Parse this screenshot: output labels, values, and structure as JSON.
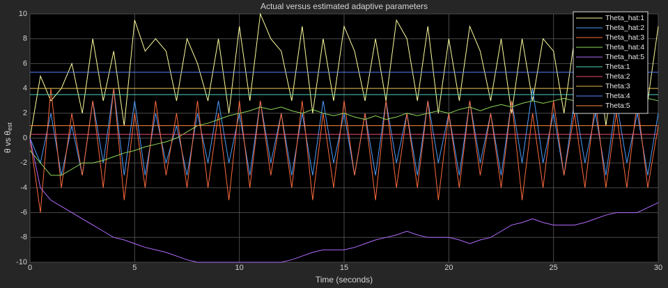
{
  "chart_data": {
    "type": "line",
    "title": "Actual versus estimated adaptive parameters",
    "xlabel": "Time (seconds)",
    "ylabel": {
      "main": "θ vs θ",
      "sub": "est"
    },
    "x": [
      0,
      0.5,
      1,
      1.5,
      2,
      2.5,
      3,
      3.5,
      4,
      4.5,
      5,
      5.5,
      6,
      6.5,
      7,
      7.5,
      8,
      8.5,
      9,
      9.5,
      10,
      10.5,
      11,
      11.5,
      12,
      12.5,
      13,
      13.5,
      14,
      14.5,
      15,
      15.5,
      16,
      16.5,
      17,
      17.5,
      18,
      18.5,
      19,
      19.5,
      20,
      20.5,
      21,
      21.5,
      22,
      22.5,
      23,
      23.5,
      24,
      24.5,
      25,
      25.5,
      26,
      26.5,
      27,
      27.5,
      28,
      28.5,
      29,
      29.5,
      30
    ],
    "xlim": [
      0,
      30
    ],
    "xticks": [
      0,
      5,
      10,
      15,
      20,
      25,
      30
    ],
    "ylim": [
      -10,
      10
    ],
    "yticks": [
      -10,
      -8,
      -6,
      -4,
      -2,
      0,
      2,
      4,
      6,
      8,
      10
    ],
    "grid": true,
    "legend": "upper right",
    "series": [
      {
        "name": "Theta_hat:1",
        "color": "#ffff9e",
        "values": [
          0,
          5,
          3,
          4,
          6,
          2,
          8,
          3,
          7,
          1,
          9.5,
          7,
          8,
          7,
          3,
          8,
          6,
          3,
          8,
          2,
          9,
          3,
          10,
          8,
          7,
          3,
          9,
          2,
          8,
          3,
          9,
          7,
          3,
          8,
          3,
          9.5,
          8,
          3,
          9,
          2,
          8,
          3,
          9,
          7,
          3,
          8,
          2,
          8,
          3,
          8,
          7,
          2,
          8,
          3,
          8,
          1,
          7,
          2,
          7,
          3,
          9
        ]
      },
      {
        "name": "Theta_hat:2",
        "color": "#4d9fff",
        "values": [
          0,
          -2,
          2,
          -3,
          1,
          -3,
          3,
          -2,
          4,
          -3,
          3,
          -3,
          2,
          -2,
          1,
          -3,
          2,
          -2,
          3,
          -2,
          2,
          -3,
          3,
          -2,
          2,
          -3,
          2,
          -3,
          3,
          -2,
          2,
          -3,
          2,
          -3,
          3,
          -2,
          2,
          -3,
          3,
          -2,
          2,
          -3,
          3,
          -2,
          2,
          -3,
          3,
          -2,
          4,
          -2,
          2,
          -3,
          3,
          -2,
          2,
          -3,
          3,
          -2,
          2,
          -3,
          2
        ]
      },
      {
        "name": "Theta_hat:3",
        "color": "#ff6b3d",
        "values": [
          0,
          -6,
          4,
          -4,
          2,
          -3,
          3,
          -4,
          4,
          -5,
          2,
          -4,
          3,
          -3,
          2,
          -4,
          3,
          -4,
          2,
          -5,
          3,
          -4,
          3,
          -3,
          2,
          -4,
          3,
          -5,
          2,
          -4,
          3,
          -3,
          2,
          -5,
          3,
          -4,
          2,
          -4,
          3,
          -5,
          2,
          -4,
          3,
          -3,
          2,
          -4,
          3,
          -5,
          2,
          -4,
          3,
          -3,
          2,
          -4,
          3,
          -4,
          2,
          -4,
          3,
          -4,
          1
        ]
      },
      {
        "name": "Theta_hat:4",
        "color": "#8fd85a",
        "values": [
          -1,
          -2,
          -3,
          -3,
          -2.5,
          -2,
          -2,
          -1.8,
          -1.5,
          -1.2,
          -1,
          -0.7,
          -0.5,
          -0.3,
          0,
          0.5,
          1,
          1.2,
          1.5,
          1.8,
          2,
          2.2,
          2.5,
          2.3,
          2.5,
          2.2,
          2,
          2.3,
          2,
          1.8,
          2,
          1.7,
          1.5,
          1.8,
          1.5,
          1.7,
          2,
          1.8,
          2,
          2.2,
          2,
          2.3,
          2.5,
          2.2,
          2.5,
          2.7,
          2.5,
          2.8,
          3,
          2.8,
          3,
          3.2,
          3,
          3.3,
          3.5,
          3.2,
          3.5,
          3.3,
          3,
          3.2,
          3
        ]
      },
      {
        "name": "Theta_hat:5",
        "color": "#b36bff",
        "values": [
          0,
          -4,
          -5,
          -5.5,
          -6,
          -6.5,
          -7,
          -7.5,
          -8,
          -8.2,
          -8.5,
          -8.8,
          -9,
          -9.2,
          -9.5,
          -9.8,
          -10,
          -10,
          -10,
          -10,
          -10,
          -10,
          -10,
          -10,
          -10,
          -9.8,
          -9.5,
          -9.2,
          -9,
          -9,
          -9,
          -8.8,
          -8.5,
          -8.2,
          -8,
          -7.8,
          -7.5,
          -7.8,
          -8,
          -8,
          -8,
          -8.2,
          -8.5,
          -8.2,
          -8,
          -7.5,
          -7,
          -6.8,
          -6.5,
          -6.8,
          -7,
          -7,
          -7,
          -6.8,
          -6.5,
          -6.2,
          -6,
          -6,
          -6,
          -5.6,
          -5.2
        ]
      },
      {
        "name": "Theta:1",
        "color": "#4fd6c0",
        "values": [
          3.5,
          3.5,
          3.5,
          3.5,
          3.5,
          3.5,
          3.5,
          3.5,
          3.5,
          3.5,
          3.5,
          3.5,
          3.5,
          3.5,
          3.5,
          3.5,
          3.5,
          3.5,
          3.5,
          3.5,
          3.5,
          3.5,
          3.5,
          3.5,
          3.5,
          3.5,
          3.5,
          3.5,
          3.5,
          3.5,
          3.5,
          3.5,
          3.5,
          3.5,
          3.5,
          3.5,
          3.5,
          3.5,
          3.5,
          3.5,
          3.5,
          3.5,
          3.5,
          3.5,
          3.5,
          3.5,
          3.5,
          3.5,
          3.5,
          3.5,
          3.5,
          3.5,
          3.5,
          3.5,
          3.5,
          3.5,
          3.5,
          3.5,
          3.5,
          3.5,
          3.5
        ]
      },
      {
        "name": "Theta:2",
        "color": "#f04a6a",
        "values": [
          0.3,
          0.3,
          0.3,
          0.3,
          0.3,
          0.3,
          0.3,
          0.3,
          0.3,
          0.3,
          0.3,
          0.3,
          0.3,
          0.3,
          0.3,
          0.3,
          0.3,
          0.3,
          0.3,
          0.3,
          0.3,
          0.3,
          0.3,
          0.3,
          0.3,
          0.3,
          0.3,
          0.3,
          0.3,
          0.3,
          0.3,
          0.3,
          0.3,
          0.3,
          0.3,
          0.3,
          0.3,
          0.3,
          0.3,
          0.3,
          0.3,
          0.3,
          0.3,
          0.3,
          0.3,
          0.3,
          0.3,
          0.3,
          0.3,
          0.3,
          0.3,
          0.3,
          0.3,
          0.3,
          0.3,
          0.3,
          0.3,
          0.3,
          0.3,
          0.3,
          0.3
        ]
      },
      {
        "name": "Theta:3",
        "color": "#e0bd4a",
        "values": [
          4,
          4,
          4,
          4,
          4,
          4,
          4,
          4,
          4,
          4,
          4,
          4,
          4,
          4,
          4,
          4,
          4,
          4,
          4,
          4,
          4,
          4,
          4,
          4,
          4,
          4,
          4,
          4,
          4,
          4,
          4,
          4,
          4,
          4,
          4,
          4,
          4,
          4,
          4,
          4,
          4,
          4,
          4,
          4,
          4,
          4,
          4,
          4,
          4,
          4,
          4,
          4,
          4,
          4,
          4,
          4,
          4,
          4,
          4,
          4,
          4
        ]
      },
      {
        "name": "Theta:4",
        "color": "#5a82ff",
        "values": [
          5.3,
          5.3,
          5.3,
          5.3,
          5.3,
          5.3,
          5.3,
          5.3,
          5.3,
          5.3,
          5.3,
          5.3,
          5.3,
          5.3,
          5.3,
          5.3,
          5.3,
          5.3,
          5.3,
          5.3,
          5.3,
          5.3,
          5.3,
          5.3,
          5.3,
          5.3,
          5.3,
          5.3,
          5.3,
          5.3,
          5.3,
          5.3,
          5.3,
          5.3,
          5.3,
          5.3,
          5.3,
          5.3,
          5.3,
          5.3,
          5.3,
          5.3,
          5.3,
          5.3,
          5.3,
          5.3,
          5.3,
          5.3,
          5.3,
          5.3,
          5.3,
          5.3,
          5.3,
          5.3,
          5.3,
          5.3,
          5.3,
          5.3,
          5.3,
          5.3,
          5.3
        ]
      },
      {
        "name": "Theta:5",
        "color": "#ff8a3d",
        "values": [
          1,
          1,
          1,
          1,
          1,
          1,
          1,
          1,
          1,
          1,
          1,
          1,
          1,
          1,
          1,
          1,
          1,
          1,
          1,
          1,
          1,
          1,
          1,
          1,
          1,
          1,
          1,
          1,
          1,
          1,
          1,
          1,
          1,
          1,
          1,
          1,
          1,
          1,
          1,
          1,
          1,
          1,
          1,
          1,
          1,
          1,
          1,
          1,
          1,
          1,
          1,
          1,
          1,
          1,
          1,
          1,
          1,
          1,
          1,
          1,
          1
        ]
      }
    ]
  }
}
